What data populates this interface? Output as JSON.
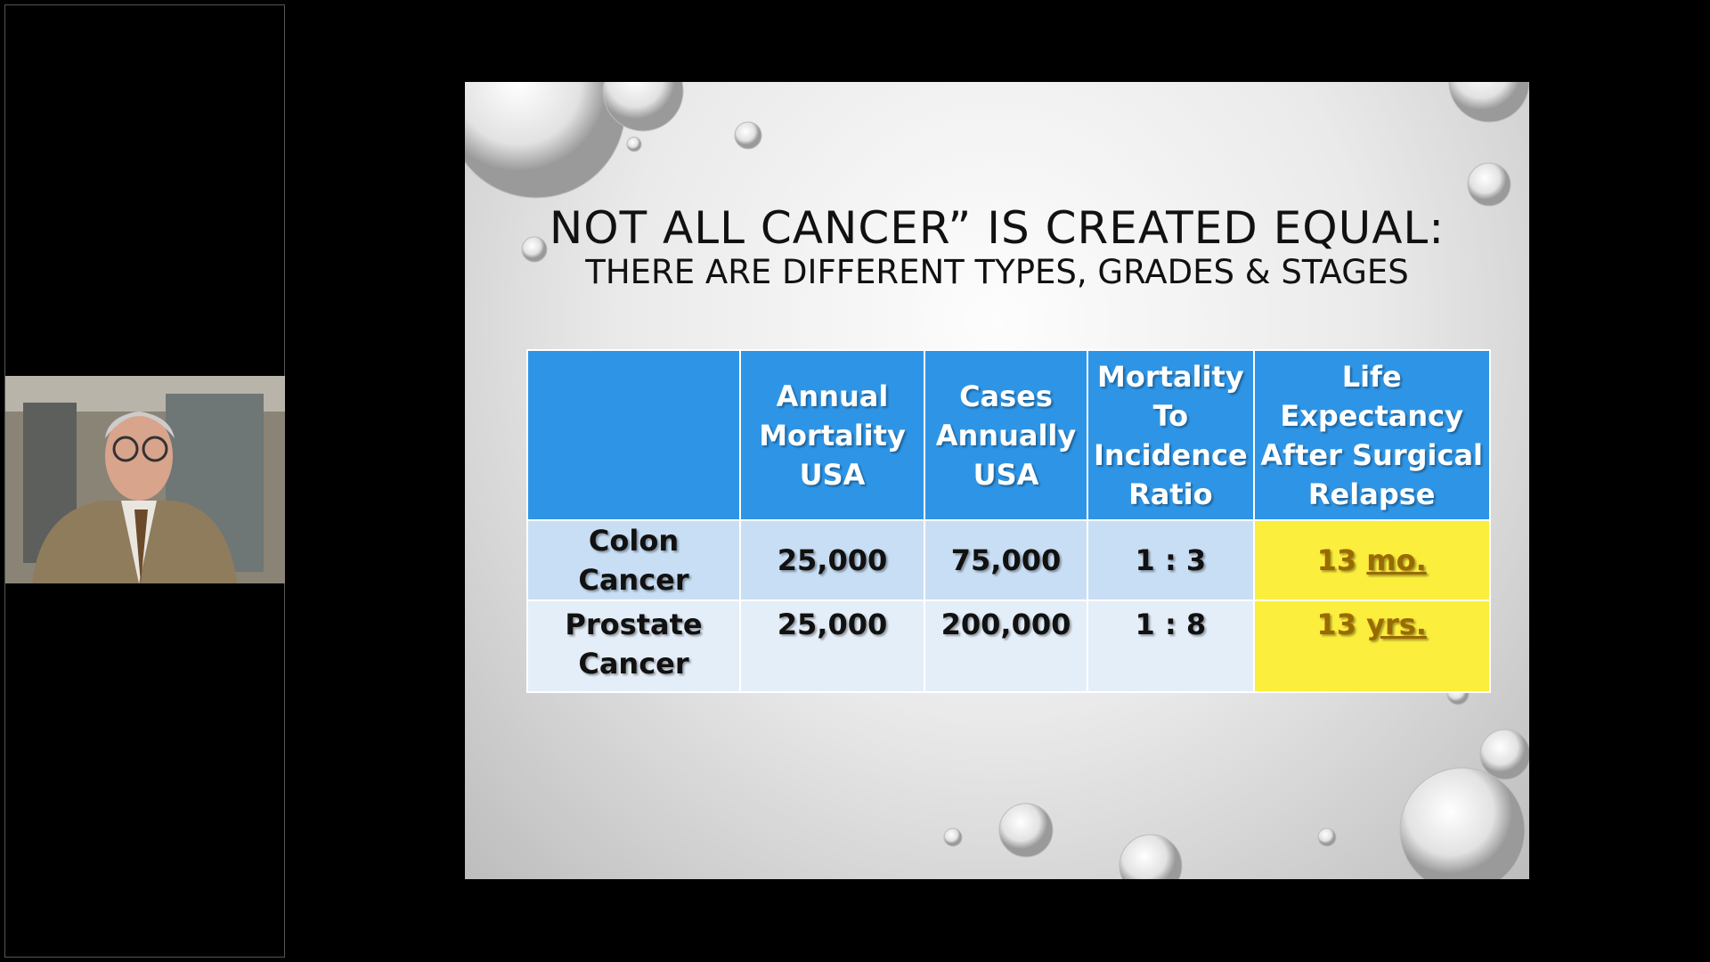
{
  "slide": {
    "title": "NOT ALL CANCER” IS CREATED EQUAL:",
    "subtitle": "THERE ARE DIFFERENT TYPES, GRADES & STAGES",
    "table": {
      "header": [
        "",
        "Annual Mortality USA",
        "Cases Annually USA",
        "Mortality To Incidence Ratio",
        "Life Expectancy After Surgical Relapse"
      ],
      "rows": [
        [
          "Colon Cancer",
          "25,000",
          "75,000",
          "1 : 3",
          {
            "value": "13",
            "unit": "mo."
          }
        ],
        [
          "Prostate Cancer",
          "25,000",
          "200,000",
          "1 : 8",
          {
            "value": "13",
            "unit": "yrs."
          }
        ]
      ]
    }
  }
}
